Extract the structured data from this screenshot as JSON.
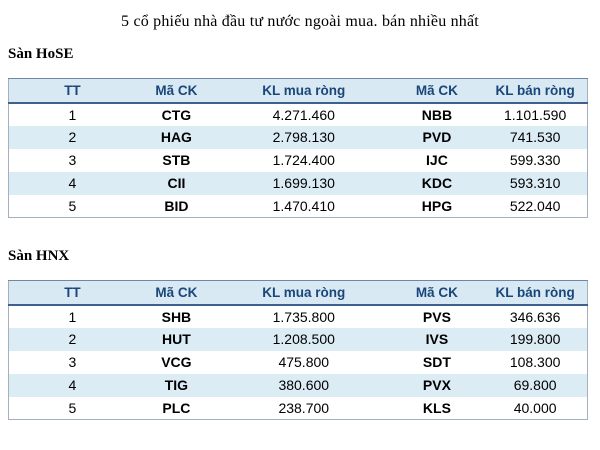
{
  "title": "5 cổ phiếu nhà đầu tư nước ngoài mua. bán nhiều nhất",
  "columns": {
    "tt": "TT",
    "ma_ck_mua": "Mã CK",
    "kl_mua_rong": "KL mua ròng",
    "ma_ck_ban": "Mã CK",
    "kl_ban_rong": "KL bán ròng"
  },
  "colors": {
    "header_bg": "#d8e9f3",
    "row_alt_bg": "#dbecf5",
    "header_text": "#1a477a",
    "outer_border": "#a3b0bf",
    "header_underline": "#3e608c"
  },
  "sections": [
    {
      "heading": "Sàn HoSE",
      "rows": [
        [
          "1",
          "CTG",
          "4.271.460",
          "NBB",
          "1.101.590"
        ],
        [
          "2",
          "HAG",
          "2.798.130",
          "PVD",
          "741.530"
        ],
        [
          "3",
          "STB",
          "1.724.400",
          "IJC",
          "599.330"
        ],
        [
          "4",
          "CII",
          "1.699.130",
          "KDC",
          "593.310"
        ],
        [
          "5",
          "BID",
          "1.470.410",
          "HPG",
          "522.040"
        ]
      ]
    },
    {
      "heading": "Sàn HNX",
      "rows": [
        [
          "1",
          "SHB",
          "1.735.800",
          "PVS",
          "346.636"
        ],
        [
          "2",
          "HUT",
          "1.208.500",
          "IVS",
          "199.800"
        ],
        [
          "3",
          "VCG",
          "475.800",
          "SDT",
          "108.300"
        ],
        [
          "4",
          "TIG",
          "380.600",
          "PVX",
          "69.800"
        ],
        [
          "5",
          "PLC",
          "238.700",
          "KLS",
          "40.000"
        ]
      ]
    }
  ]
}
